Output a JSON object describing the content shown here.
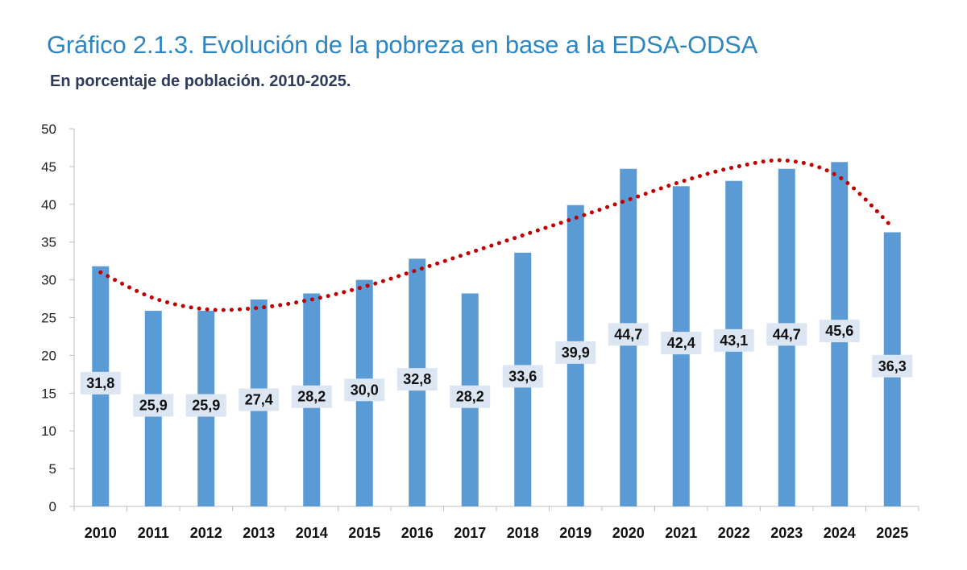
{
  "header": {
    "title": "Gráfico 2.1.3. Evolución de la pobreza en base a la EDSA-ODSA",
    "subtitle": "En porcentaje de población. 2010-2025."
  },
  "colors": {
    "bar": "#5b9bd5",
    "label_box": "#dce6f2",
    "trend": "#c00000",
    "title": "#2e86c1",
    "subtitle": "#2f3a58",
    "axis": "#bfbfbf"
  },
  "chart_data": {
    "type": "bar",
    "title": "Gráfico 2.1.3. Evolución de la pobreza en base a la EDSA-ODSA",
    "subtitle": "En porcentaje de población. 2010-2025.",
    "xlabel": "",
    "ylabel": "",
    "categories": [
      "2010",
      "2011",
      "2012",
      "2013",
      "2014",
      "2015",
      "2016",
      "2017",
      "2018",
      "2019",
      "2020",
      "2021",
      "2022",
      "2023",
      "2024",
      "2025"
    ],
    "values": [
      31.8,
      25.9,
      25.9,
      27.4,
      28.2,
      30.0,
      32.8,
      28.2,
      33.6,
      39.9,
      44.7,
      42.4,
      43.1,
      44.7,
      45.6,
      36.3
    ],
    "value_labels": [
      "31,8",
      "25,9",
      "25,9",
      "27,4",
      "28,2",
      "30,0",
      "32,8",
      "28,2",
      "33,6",
      "39,9",
      "44,7",
      "42,4",
      "43,1",
      "44,7",
      "45,6",
      "36,3"
    ],
    "trend_line": {
      "style": "dotted",
      "values": [
        31.0,
        27.6,
        26.1,
        26.3,
        27.4,
        29.1,
        31.3,
        33.6,
        35.9,
        38.2,
        40.6,
        43.0,
        44.9,
        45.8,
        43.6,
        37.0
      ]
    },
    "ylim": [
      0,
      50
    ],
    "yticks": [
      0,
      5,
      10,
      15,
      20,
      25,
      30,
      35,
      40,
      45,
      50
    ],
    "grid": false,
    "legend": "none"
  }
}
